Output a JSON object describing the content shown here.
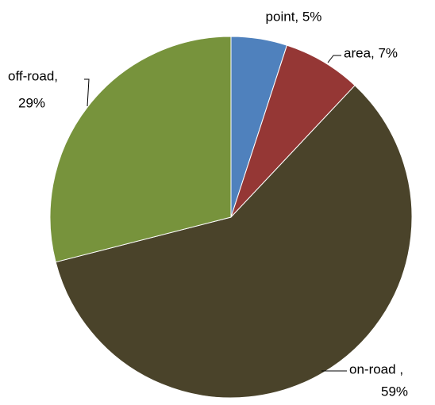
{
  "chart_data": {
    "type": "pie",
    "labels": [
      [
        "point, 5%"
      ],
      [
        "area, 7%"
      ],
      [
        "on-road ,",
        "59%"
      ],
      [
        "off-road,",
        "29%"
      ]
    ],
    "values": [
      5,
      7,
      59,
      29
    ],
    "colors": [
      "#4f81bd",
      "#953735",
      "#4a432a",
      "#77933c"
    ]
  }
}
